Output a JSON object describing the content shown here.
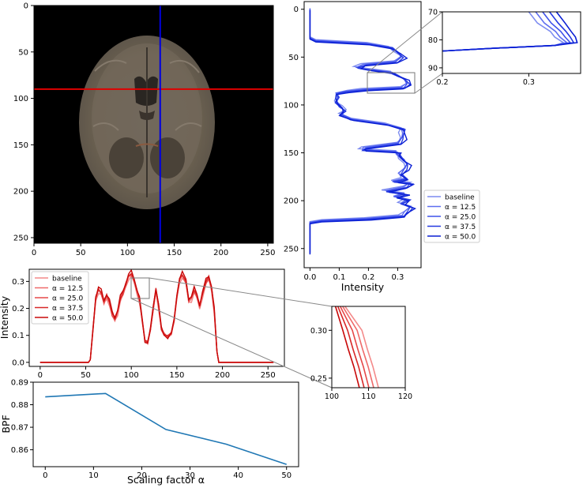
{
  "chart_data": [
    {
      "id": "brain-slice",
      "type": "image",
      "xlim": [
        0,
        256
      ],
      "ylim": [
        256,
        0
      ],
      "xticks": [
        0,
        50,
        100,
        150,
        200,
        250
      ],
      "yticks": [
        0,
        50,
        100,
        150,
        200,
        250
      ],
      "crosshair": {
        "horizontal_y": 90,
        "vertical_x": 135,
        "horizontal_color": "#e00000",
        "vertical_color": "#0000e0"
      }
    },
    {
      "id": "vertical-profile",
      "type": "line",
      "xlabel": "Intensity",
      "xlim": [
        -0.02,
        0.38
      ],
      "ylim": [
        270,
        -8
      ],
      "xticks": [
        "0.0",
        "0.1",
        "0.2",
        "0.3"
      ],
      "yticks": [
        0,
        50,
        100,
        150,
        200,
        250
      ],
      "legend": "lower-right",
      "series": [
        {
          "name": "baseline",
          "color": "#7d8cf0"
        },
        {
          "name": "α = 12.5",
          "color": "#5e6ef0"
        },
        {
          "name": "α = 25.0",
          "color": "#3f52ea"
        },
        {
          "name": "α = 37.5",
          "color": "#2438e0"
        },
        {
          "name": "α = 50.0",
          "color": "#0a1fd4"
        }
      ],
      "profile": [
        [
          0,
          0
        ],
        [
          30,
          0
        ],
        [
          33,
          0.02
        ],
        [
          36,
          0.2
        ],
        [
          40,
          0.29
        ],
        [
          45,
          0.31
        ],
        [
          50,
          0.32
        ],
        [
          55,
          0.3
        ],
        [
          58,
          0.2
        ],
        [
          61,
          0.17
        ],
        [
          63,
          0.2
        ],
        [
          66,
          0.29
        ],
        [
          69,
          0.31
        ],
        [
          73,
          0.33
        ],
        [
          78,
          0.34
        ],
        [
          82,
          0.33
        ],
        [
          84,
          0.2
        ],
        [
          86,
          0.12
        ],
        [
          88,
          0.09
        ],
        [
          92,
          0.1
        ],
        [
          97,
          0.09
        ],
        [
          102,
          0.1
        ],
        [
          106,
          0.12
        ],
        [
          110,
          0.11
        ],
        [
          115,
          0.14
        ],
        [
          120,
          0.26
        ],
        [
          125,
          0.33
        ],
        [
          130,
          0.33
        ],
        [
          135,
          0.32
        ],
        [
          140,
          0.31
        ],
        [
          145,
          0.2
        ],
        [
          147,
          0.19
        ],
        [
          149,
          0.3
        ],
        [
          152,
          0.31
        ],
        [
          157,
          0.33
        ],
        [
          162,
          0.34
        ],
        [
          167,
          0.33
        ],
        [
          172,
          0.32
        ],
        [
          177,
          0.34
        ],
        [
          180,
          0.29
        ],
        [
          182,
          0.35
        ],
        [
          186,
          0.34
        ],
        [
          190,
          0.27
        ],
        [
          193,
          0.33
        ],
        [
          196,
          0.3
        ],
        [
          199,
          0.35
        ],
        [
          203,
          0.32
        ],
        [
          207,
          0.35
        ],
        [
          212,
          0.34
        ],
        [
          216,
          0.33
        ],
        [
          219,
          0.2
        ],
        [
          221,
          0.04
        ],
        [
          223,
          0
        ],
        [
          255,
          0
        ]
      ],
      "inset": {
        "xlim": [
          0.2,
          0.36
        ],
        "ylim": [
          70,
          92
        ],
        "xticks": [
          "0.2",
          "0.3"
        ],
        "yticks": [
          70,
          80,
          90
        ]
      }
    },
    {
      "id": "horizontal-profile",
      "type": "line",
      "ylabel": "Intensity",
      "xlim": [
        -12,
        268
      ],
      "ylim": [
        -0.015,
        0.345
      ],
      "xticks": [
        0,
        50,
        100,
        150,
        200,
        250
      ],
      "yticks": [
        "0.0",
        "0.1",
        "0.2",
        "0.3"
      ],
      "legend": "upper-left",
      "series": [
        {
          "name": "baseline",
          "color": "#f48a8a"
        },
        {
          "name": "α = 12.5",
          "color": "#ef6a6a"
        },
        {
          "name": "α = 25.0",
          "color": "#e64848"
        },
        {
          "name": "α = 37.5",
          "color": "#d82828"
        },
        {
          "name": "α = 50.0",
          "color": "#c80808"
        }
      ],
      "profile": [
        [
          0,
          0
        ],
        [
          53,
          0
        ],
        [
          55,
          0.01
        ],
        [
          58,
          0.12
        ],
        [
          61,
          0.25
        ],
        [
          64,
          0.28
        ],
        [
          67,
          0.26
        ],
        [
          70,
          0.23
        ],
        [
          73,
          0.26
        ],
        [
          76,
          0.23
        ],
        [
          79,
          0.18
        ],
        [
          82,
          0.17
        ],
        [
          85,
          0.2
        ],
        [
          88,
          0.24
        ],
        [
          91,
          0.26
        ],
        [
          94,
          0.3
        ],
        [
          97,
          0.33
        ],
        [
          100,
          0.33
        ],
        [
          103,
          0.31
        ],
        [
          106,
          0.28
        ],
        [
          109,
          0.24
        ],
        [
          112,
          0.15
        ],
        [
          115,
          0.08
        ],
        [
          118,
          0.08
        ],
        [
          121,
          0.12
        ],
        [
          124,
          0.2
        ],
        [
          127,
          0.28
        ],
        [
          130,
          0.22
        ],
        [
          133,
          0.12
        ],
        [
          136,
          0.1
        ],
        [
          140,
          0.1
        ],
        [
          144,
          0.11
        ],
        [
          147,
          0.15
        ],
        [
          150,
          0.25
        ],
        [
          153,
          0.32
        ],
        [
          156,
          0.33
        ],
        [
          160,
          0.3
        ],
        [
          163,
          0.24
        ],
        [
          166,
          0.25
        ],
        [
          169,
          0.27
        ],
        [
          172,
          0.25
        ],
        [
          175,
          0.22
        ],
        [
          178,
          0.26
        ],
        [
          182,
          0.3
        ],
        [
          185,
          0.32
        ],
        [
          188,
          0.29
        ],
        [
          191,
          0.2
        ],
        [
          194,
          0.04
        ],
        [
          196,
          0
        ],
        [
          256,
          0
        ]
      ],
      "inset": {
        "xlim": [
          100,
          120
        ],
        "ylim": [
          0.24,
          0.325
        ],
        "xticks": [
          100,
          110,
          120
        ],
        "yticks": [
          "0.25",
          "0.30"
        ]
      }
    },
    {
      "id": "bpf",
      "type": "line",
      "xlabel": "Scaling factor α",
      "ylabel": "BPF",
      "xlim": [
        -2.5,
        52.5
      ],
      "ylim": [
        0.8525,
        0.89
      ],
      "xticks": [
        0,
        10,
        20,
        30,
        40,
        50
      ],
      "yticks": [
        "0.86",
        "0.87",
        "0.88",
        "0.89"
      ],
      "color": "#1f77b4",
      "x": [
        0,
        12.5,
        25,
        37.5,
        50
      ],
      "y": [
        0.8835,
        0.885,
        0.869,
        0.8625,
        0.8535
      ]
    }
  ]
}
